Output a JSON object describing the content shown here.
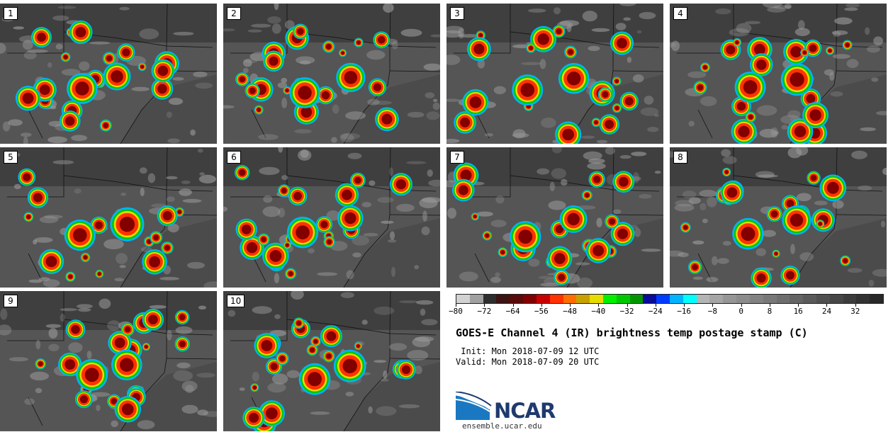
{
  "panels": [
    {
      "label": "1"
    },
    {
      "label": "2"
    },
    {
      "label": "3"
    },
    {
      "label": "4"
    },
    {
      "label": "5"
    },
    {
      "label": "6"
    },
    {
      "label": "7"
    },
    {
      "label": "8"
    },
    {
      "label": "9"
    },
    {
      "label": "10"
    }
  ],
  "colorbar": {
    "colors": [
      "#d2d2d2",
      "#a0a0a0",
      "#2e2e2e",
      "#3c1414",
      "#5a0a0a",
      "#820000",
      "#c80000",
      "#ff3200",
      "#ff6e00",
      "#c8a000",
      "#e6dc00",
      "#00f000",
      "#00c800",
      "#009600",
      "#0a0a9b",
      "#003cff",
      "#00b4ff",
      "#00ffff",
      "#b4b4b4",
      "#a5a5a5",
      "#969696",
      "#8c8c8c",
      "#828282",
      "#787878",
      "#6e6e6e",
      "#646464",
      "#5a5a5a",
      "#505050",
      "#464646",
      "#3c3c3c",
      "#323232",
      "#282828"
    ],
    "min": -80,
    "max": 40,
    "tick_labels": [
      "−80",
      "−72",
      "−64",
      "−56",
      "−48",
      "−40",
      "−32",
      "−24",
      "−16",
      "−8",
      "0",
      "8",
      "16",
      "24",
      "32"
    ]
  },
  "title": "GOES-E Channel 4 (IR) brightness temp postage stamp (C)",
  "init": " Init: Mon 2018-07-09 12 UTC",
  "valid": "Valid: Mon 2018-07-09 20 UTC",
  "logo": {
    "text": "NCAR",
    "url": "ensemble.ucar.edu"
  }
}
